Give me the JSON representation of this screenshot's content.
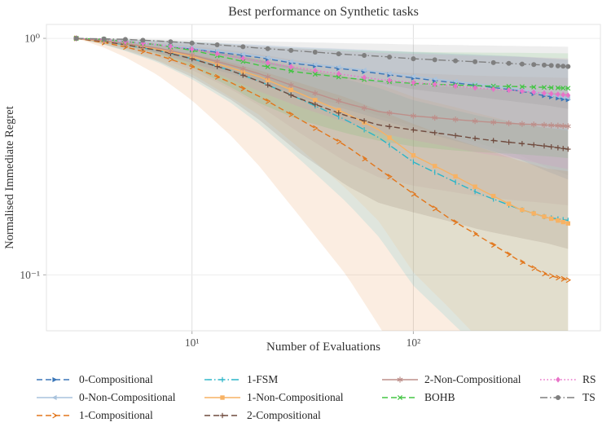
{
  "chart_data": {
    "type": "line",
    "title": "Best performance on Synthetic tasks",
    "xlabel": "Number of Evaluations",
    "ylabel": "Normalised Immediate Regret",
    "xscale": "log",
    "yscale": "log",
    "xlim": [
      2.2,
      700
    ],
    "ylim": [
      0.058,
      1.145
    ],
    "grid": true,
    "band_alpha": 0.13,
    "xticks": [
      {
        "value": 10,
        "label": "10¹"
      },
      {
        "value": 100,
        "label": "10²"
      }
    ],
    "yticks": [
      {
        "value": 1,
        "label": "10⁰"
      },
      {
        "value": 0.1,
        "label": "10⁻¹"
      }
    ],
    "x": [
      3,
      4,
      5,
      7,
      10,
      15,
      20,
      30,
      50,
      70,
      100,
      150,
      200,
      300,
      400,
      500
    ],
    "marker_x": [
      3,
      4,
      5,
      6,
      8,
      10,
      13,
      17,
      22,
      28,
      36,
      46,
      60,
      78,
      100,
      125,
      155,
      190,
      230,
      270,
      310,
      350,
      390,
      420,
      450,
      475,
      500
    ],
    "series": [
      {
        "name": "0-Compositional",
        "color": "#3a76b8",
        "dash": "dashed",
        "marker": "tri-right",
        "values": [
          1.0,
          0.98,
          0.97,
          0.94,
          0.9,
          0.86,
          0.83,
          0.78,
          0.74,
          0.71,
          0.68,
          0.65,
          0.63,
          0.6,
          0.57,
          0.55
        ],
        "band_pow": [
          2.3,
          0.35
        ]
      },
      {
        "name": "0-Non-Compositional",
        "color": "#a9c3dd",
        "dash": "solid",
        "marker": "tri-left",
        "values": [
          1.0,
          0.98,
          0.97,
          0.94,
          0.91,
          0.87,
          0.84,
          0.79,
          0.75,
          0.72,
          0.69,
          0.66,
          0.64,
          0.61,
          0.58,
          0.56
        ],
        "band_pow": [
          2.3,
          0.35
        ]
      },
      {
        "name": "1-Compositional",
        "color": "#e2761b",
        "dash": "dashed",
        "marker": "arrow",
        "values": [
          1.0,
          0.96,
          0.92,
          0.85,
          0.76,
          0.65,
          0.57,
          0.46,
          0.35,
          0.28,
          0.22,
          0.17,
          0.145,
          0.115,
          0.1,
          0.095
        ],
        "band_pow": [
          2.2,
          0.55
        ]
      },
      {
        "name": "1-FSM",
        "color": "#2ab5c8",
        "dash": "dashdot",
        "marker": "tick",
        "values": [
          1.0,
          0.97,
          0.94,
          0.89,
          0.82,
          0.73,
          0.66,
          0.56,
          0.45,
          0.38,
          0.3,
          0.25,
          0.22,
          0.19,
          0.175,
          0.17
        ],
        "band_pow": [
          2.0,
          0.5
        ]
      },
      {
        "name": "1-Non-Compositional",
        "color": "#f7b264",
        "dash": "solid",
        "marker": "square",
        "values": [
          1.0,
          0.97,
          0.95,
          0.9,
          0.84,
          0.75,
          0.69,
          0.59,
          0.48,
          0.41,
          0.32,
          0.265,
          0.23,
          0.19,
          0.175,
          0.165
        ],
        "band_pow": [
          2.0,
          0.5
        ]
      },
      {
        "name": "2-Compositional",
        "color": "#6f4a3d",
        "dash": "dashed",
        "marker": "plus",
        "values": [
          1.0,
          0.97,
          0.94,
          0.89,
          0.82,
          0.73,
          0.66,
          0.56,
          0.47,
          0.43,
          0.41,
          0.39,
          0.375,
          0.36,
          0.35,
          0.34
        ],
        "band_pow": [
          1.9,
          0.5
        ]
      },
      {
        "name": "2-Non-Compositional",
        "color": "#bd8f8a",
        "dash": "solid",
        "marker": "star",
        "values": [
          1.0,
          0.98,
          0.95,
          0.91,
          0.85,
          0.77,
          0.71,
          0.62,
          0.53,
          0.49,
          0.47,
          0.455,
          0.445,
          0.435,
          0.43,
          0.425
        ],
        "band_pow": [
          1.9,
          0.45
        ]
      },
      {
        "name": "BOHB",
        "color": "#43c543",
        "dash": "dashed",
        "marker": "x",
        "values": [
          1.0,
          0.99,
          0.97,
          0.94,
          0.89,
          0.82,
          0.77,
          0.72,
          0.68,
          0.66,
          0.645,
          0.635,
          0.63,
          0.625,
          0.62,
          0.615
        ],
        "band_pow": [
          2.4,
          0.3
        ]
      },
      {
        "name": "RS",
        "color": "#e873c8",
        "dash": "dotted",
        "marker": "diamond",
        "values": [
          1.0,
          0.99,
          0.97,
          0.94,
          0.9,
          0.84,
          0.8,
          0.75,
          0.7,
          0.67,
          0.65,
          0.63,
          0.615,
          0.6,
          0.585,
          0.575
        ],
        "band_pow": [
          2.3,
          0.35
        ]
      },
      {
        "name": "TS",
        "color": "#7f7f7f",
        "dash": "dashdot",
        "marker": "circle",
        "values": [
          1.0,
          0.995,
          0.99,
          0.975,
          0.955,
          0.93,
          0.91,
          0.885,
          0.855,
          0.84,
          0.82,
          0.805,
          0.795,
          0.78,
          0.77,
          0.76
        ],
        "band_pow": [
          2.5,
          0.3
        ]
      }
    ],
    "legend_position": "below"
  },
  "legend": {
    "columns": [
      [
        0,
        1,
        2
      ],
      [
        3,
        4,
        5
      ],
      [
        6,
        7
      ],
      [
        8,
        9
      ]
    ]
  }
}
